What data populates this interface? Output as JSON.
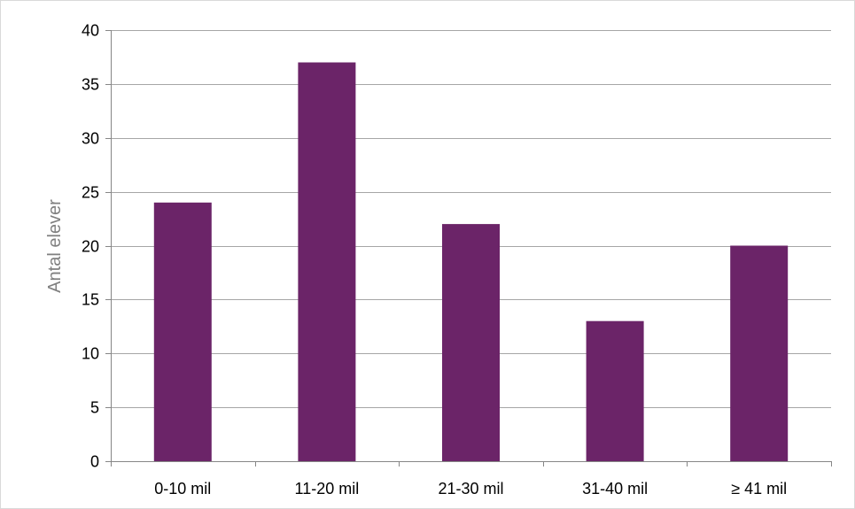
{
  "chart_data": {
    "type": "bar",
    "categories": [
      "0-10 mil",
      "11-20 mil",
      "21-30 mil",
      "31-40 mil",
      "≥ 41 mil"
    ],
    "values": [
      24,
      37,
      22,
      13,
      20
    ],
    "title": "",
    "xlabel": "",
    "ylabel": "Antal elever",
    "ylim": [
      0,
      40
    ],
    "yticks": [
      0,
      5,
      10,
      15,
      20,
      25,
      30,
      35,
      40
    ],
    "grid": true,
    "legend": "none",
    "colors": {
      "bar": "#6b2468",
      "grid": "#a6a6a6",
      "axis": "#868686",
      "ylabel": "#7f7f7f"
    }
  }
}
